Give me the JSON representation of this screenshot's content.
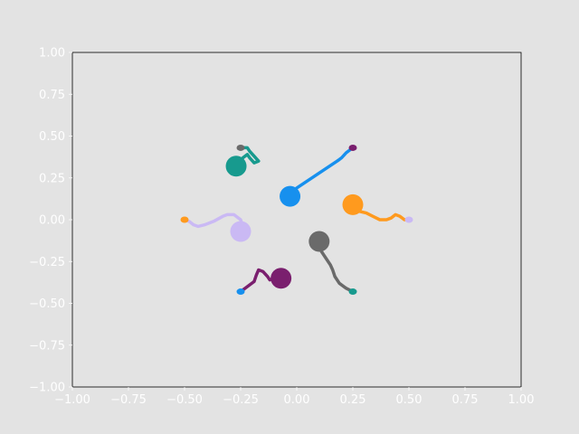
{
  "chart_data": {
    "type": "line",
    "title": "",
    "xlabel": "",
    "ylabel": "",
    "xlim": [
      -1.0,
      1.0
    ],
    "ylim": [
      -1.0,
      1.0
    ],
    "grid": false,
    "x_ticks": [
      "−1.00",
      "−0.75",
      "−0.50",
      "−0.25",
      "0.00",
      "0.25",
      "0.50",
      "0.75",
      "1.00"
    ],
    "y_ticks": [
      "−1.00",
      "−0.75",
      "−0.50",
      "−0.25",
      "0.00",
      "0.25",
      "0.50",
      "0.75",
      "1.00"
    ],
    "x_tick_values": [
      -1.0,
      -0.75,
      -0.5,
      -0.25,
      0.0,
      0.25,
      0.5,
      0.75,
      1.0
    ],
    "y_tick_values": [
      -1.0,
      -0.75,
      -0.5,
      -0.25,
      0.0,
      0.25,
      0.5,
      0.75,
      1.0
    ],
    "series": [
      {
        "color": "#1790ee",
        "start_color": "#7a1f6e",
        "points": [
          [
            0.25,
            0.43
          ],
          [
            0.22,
            0.4
          ],
          [
            0.2,
            0.37
          ],
          [
            0.19,
            0.36
          ],
          [
            0.18,
            0.35
          ],
          [
            0.0,
            0.19
          ],
          [
            -0.03,
            0.14
          ]
        ]
      },
      {
        "color": "#179a8e",
        "start_color": "#6a6a6a",
        "points": [
          [
            -0.25,
            0.43
          ],
          [
            -0.22,
            0.43
          ],
          [
            -0.21,
            0.41
          ],
          [
            -0.19,
            0.38
          ],
          [
            -0.17,
            0.35
          ],
          [
            -0.19,
            0.34
          ],
          [
            -0.21,
            0.37
          ],
          [
            -0.22,
            0.39
          ],
          [
            -0.24,
            0.37
          ],
          [
            -0.25,
            0.35
          ],
          [
            -0.27,
            0.32
          ]
        ]
      },
      {
        "color": "#cab9f4",
        "start_color": "#ff9a1e",
        "points": [
          [
            -0.5,
            0.0
          ],
          [
            -0.48,
            -0.01
          ],
          [
            -0.46,
            -0.03
          ],
          [
            -0.44,
            -0.04
          ],
          [
            -0.41,
            -0.03
          ],
          [
            -0.37,
            -0.01
          ],
          [
            -0.33,
            0.02
          ],
          [
            -0.31,
            0.03
          ],
          [
            -0.28,
            0.03
          ],
          [
            -0.25,
            0.0
          ],
          [
            -0.24,
            -0.04
          ],
          [
            -0.25,
            -0.07
          ]
        ]
      },
      {
        "color": "#7a1f6e",
        "start_color": "#1790ee",
        "points": [
          [
            -0.25,
            -0.43
          ],
          [
            -0.22,
            -0.4
          ],
          [
            -0.19,
            -0.37
          ],
          [
            -0.18,
            -0.33
          ],
          [
            -0.17,
            -0.3
          ],
          [
            -0.15,
            -0.31
          ],
          [
            -0.13,
            -0.34
          ],
          [
            -0.12,
            -0.36
          ],
          [
            -0.1,
            -0.35
          ],
          [
            -0.07,
            -0.35
          ]
        ]
      },
      {
        "color": "#6a6a6a",
        "start_color": "#179a8e",
        "points": [
          [
            0.25,
            -0.43
          ],
          [
            0.22,
            -0.41
          ],
          [
            0.19,
            -0.38
          ],
          [
            0.17,
            -0.34
          ],
          [
            0.16,
            -0.3
          ],
          [
            0.15,
            -0.27
          ],
          [
            0.13,
            -0.23
          ],
          [
            0.11,
            -0.19
          ],
          [
            0.1,
            -0.13
          ]
        ]
      },
      {
        "color": "#ff9a1e",
        "start_color": "#cab9f4",
        "points": [
          [
            0.5,
            0.0
          ],
          [
            0.48,
            0.0
          ],
          [
            0.46,
            0.02
          ],
          [
            0.44,
            0.03
          ],
          [
            0.42,
            0.01
          ],
          [
            0.4,
            0.0
          ],
          [
            0.37,
            0.0
          ],
          [
            0.34,
            0.02
          ],
          [
            0.31,
            0.04
          ],
          [
            0.28,
            0.05
          ],
          [
            0.25,
            0.09
          ]
        ]
      }
    ]
  }
}
